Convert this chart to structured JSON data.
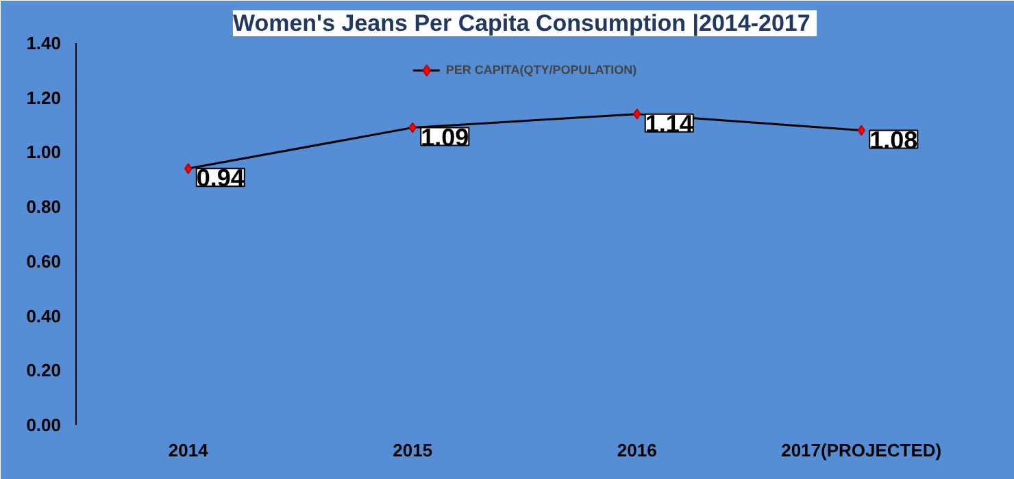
{
  "chart_data": {
    "type": "line",
    "title": "Women's Jeans Per Capita Consumption  |2014-2017",
    "categories": [
      "2014",
      "2015",
      "2016",
      "2017(PROJECTED)"
    ],
    "series": [
      {
        "name": "PER CAPITA(QTY/POPULATION)",
        "color": "#000000",
        "values": [
          0.94,
          1.09,
          1.14,
          1.08
        ]
      }
    ],
    "ylim": [
      0,
      1.4
    ],
    "yticks": [
      {
        "value": 0,
        "label": "0.00"
      },
      {
        "value": 0.2,
        "label": "0.20"
      },
      {
        "value": 0.4,
        "label": "0.40"
      },
      {
        "value": 0.6,
        "label": "0.60"
      },
      {
        "value": 0.8,
        "label": "0.80"
      },
      {
        "value": 1.0,
        "label": "1.00"
      },
      {
        "value": 1.2,
        "label": "1.20"
      },
      {
        "value": 1.4,
        "label": "1.40"
      }
    ],
    "grid": false,
    "legend": "top",
    "marker": "diamond",
    "line_style": "solid",
    "data_labels": true
  }
}
